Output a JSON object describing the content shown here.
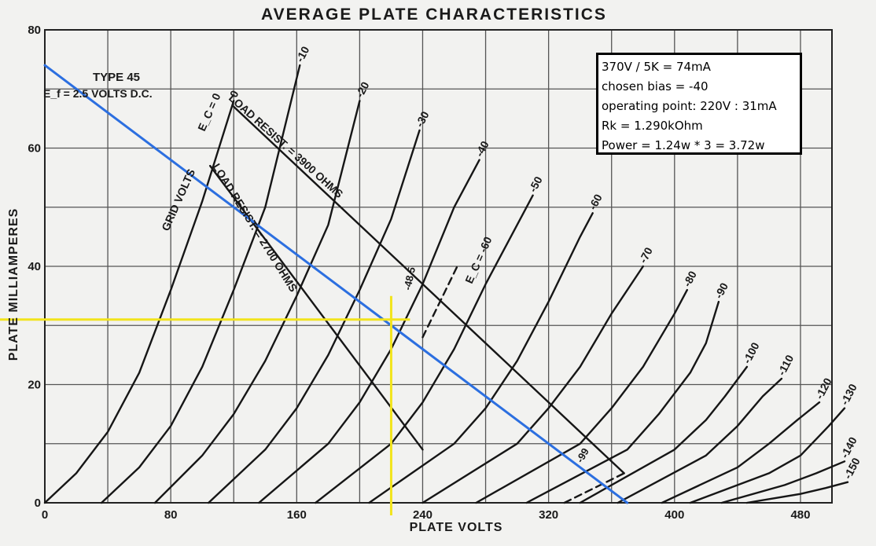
{
  "title": "AVERAGE PLATE CHARACTERISTICS",
  "tube": {
    "type": "TYPE 45",
    "filament": "E_f = 2.5 VOLTS D.C."
  },
  "annotations": {
    "grid_volts": "GRID VOLTS",
    "ec0": "E_C = 0",
    "ec60": "E_C = -60",
    "load_3900": "LOAD RESIST. = 3900 OHMS",
    "load_2700": "LOAD RESIST. = 2700 OHMS",
    "label_485": "-48.5",
    "label_99": "-99"
  },
  "info_box": {
    "lines": [
      "370V / 5K = 74mA",
      "chosen bias = -40",
      "operating point: 220V : 31mA",
      "Rk = 1.290kOhm",
      "Power = 1.24w * 3 = 3.72w"
    ]
  },
  "chart_data": {
    "type": "line",
    "title": "AVERAGE PLATE CHARACTERISTICS",
    "xlabel": "PLATE VOLTS",
    "ylabel": "PLATE MILLIAMPERES",
    "xlim": [
      0,
      500
    ],
    "ylim": [
      0,
      80
    ],
    "xticks": [
      0,
      80,
      160,
      240,
      320,
      400,
      480
    ],
    "yticks": [
      0,
      20,
      40,
      60,
      80
    ],
    "grid": true,
    "series": [
      {
        "name": "0",
        "label": "0",
        "points": [
          [
            0,
            0
          ],
          [
            20,
            5
          ],
          [
            40,
            12
          ],
          [
            60,
            22
          ],
          [
            80,
            36
          ],
          [
            100,
            51
          ],
          [
            120,
            68
          ]
        ]
      },
      {
        "name": "-10",
        "label": "-10",
        "points": [
          [
            36,
            0
          ],
          [
            60,
            6
          ],
          [
            80,
            13
          ],
          [
            100,
            23
          ],
          [
            120,
            36
          ],
          [
            140,
            50
          ],
          [
            162,
            74
          ]
        ]
      },
      {
        "name": "-20",
        "label": "-20",
        "points": [
          [
            70,
            0
          ],
          [
            100,
            8
          ],
          [
            120,
            15
          ],
          [
            140,
            24
          ],
          [
            160,
            35
          ],
          [
            180,
            47
          ],
          [
            200,
            68
          ]
        ]
      },
      {
        "name": "-30",
        "label": "-30",
        "points": [
          [
            104,
            0
          ],
          [
            140,
            9
          ],
          [
            160,
            16
          ],
          [
            180,
            25
          ],
          [
            200,
            36
          ],
          [
            220,
            48
          ],
          [
            238,
            63
          ]
        ]
      },
      {
        "name": "-40",
        "label": "-40",
        "points": [
          [
            136,
            0
          ],
          [
            180,
            10
          ],
          [
            200,
            17
          ],
          [
            220,
            26
          ],
          [
            240,
            37
          ],
          [
            260,
            50
          ],
          [
            276,
            58
          ]
        ]
      },
      {
        "name": "-50",
        "label": "-50",
        "points": [
          [
            172,
            0
          ],
          [
            220,
            10
          ],
          [
            240,
            17
          ],
          [
            260,
            26
          ],
          [
            280,
            37
          ],
          [
            300,
            47
          ],
          [
            310,
            52
          ]
        ]
      },
      {
        "name": "-60",
        "label": "-60",
        "points": [
          [
            206,
            0
          ],
          [
            260,
            10
          ],
          [
            280,
            16
          ],
          [
            300,
            24
          ],
          [
            320,
            34
          ],
          [
            340,
            45
          ],
          [
            348,
            49
          ]
        ]
      },
      {
        "name": "-70",
        "label": "-70",
        "points": [
          [
            240,
            0
          ],
          [
            300,
            10
          ],
          [
            320,
            16
          ],
          [
            340,
            23
          ],
          [
            360,
            32
          ],
          [
            380,
            40
          ]
        ]
      },
      {
        "name": "-80",
        "label": "-80",
        "points": [
          [
            274,
            0
          ],
          [
            340,
            10
          ],
          [
            360,
            16
          ],
          [
            380,
            23
          ],
          [
            400,
            32
          ],
          [
            408,
            36
          ]
        ]
      },
      {
        "name": "-90",
        "label": "-90",
        "points": [
          [
            306,
            0
          ],
          [
            370,
            9
          ],
          [
            390,
            15
          ],
          [
            410,
            22
          ],
          [
            420,
            27
          ],
          [
            428,
            34
          ]
        ]
      },
      {
        "name": "-100",
        "label": "-100",
        "points": [
          [
            340,
            0
          ],
          [
            400,
            9
          ],
          [
            420,
            14
          ],
          [
            432,
            18
          ],
          [
            446,
            23
          ]
        ]
      },
      {
        "name": "-110",
        "label": "-110",
        "points": [
          [
            364,
            0
          ],
          [
            420,
            8
          ],
          [
            440,
            13
          ],
          [
            456,
            18
          ],
          [
            468,
            21
          ]
        ]
      },
      {
        "name": "-120",
        "label": "-120",
        "points": [
          [
            392,
            0
          ],
          [
            440,
            6
          ],
          [
            460,
            10
          ],
          [
            478,
            14
          ],
          [
            492,
            17
          ]
        ]
      },
      {
        "name": "-130",
        "label": "-130",
        "points": [
          [
            410,
            0
          ],
          [
            460,
            5
          ],
          [
            480,
            8
          ],
          [
            498,
            13
          ],
          [
            508,
            16
          ]
        ]
      },
      {
        "name": "-140",
        "label": "-140",
        "points": [
          [
            430,
            0
          ],
          [
            470,
            3
          ],
          [
            490,
            5
          ],
          [
            508,
            7
          ]
        ]
      },
      {
        "name": "-150",
        "label": "-150",
        "points": [
          [
            446,
            0
          ],
          [
            480,
            1.5
          ],
          [
            496,
            2.5
          ],
          [
            510,
            3.5
          ]
        ]
      },
      {
        "name": "load 3900 ohms",
        "points": [
          [
            120,
            67
          ],
          [
            368,
            5
          ]
        ]
      },
      {
        "name": "load 2700 ohms",
        "points": [
          [
            105,
            57
          ],
          [
            240,
            9
          ]
        ]
      },
      {
        "name": "-48.5",
        "style": "dashed",
        "points": [
          [
            240,
            28
          ],
          [
            262,
            40
          ]
        ]
      },
      {
        "name": "-99",
        "style": "dashed",
        "points": [
          [
            330,
            0
          ],
          [
            368,
            5
          ]
        ]
      },
      {
        "name": "load line 5K",
        "color": "#2c6fe0",
        "points": [
          [
            0,
            74
          ],
          [
            370,
            0
          ]
        ]
      }
    ],
    "operating_point": {
      "x": 220,
      "y": 31,
      "color": "#f2e41c"
    }
  }
}
